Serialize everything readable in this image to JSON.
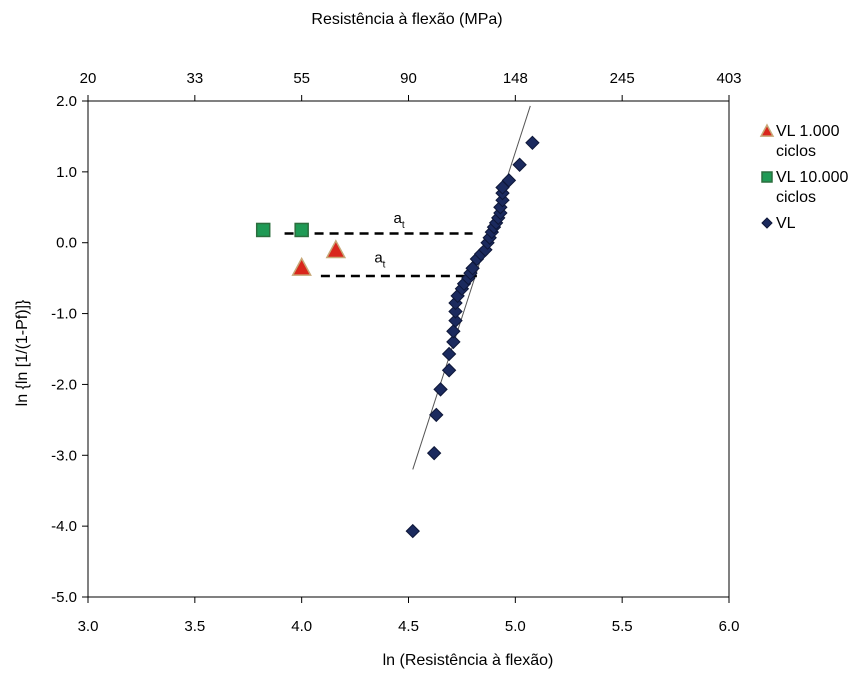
{
  "chart_data": {
    "type": "scatter",
    "xlabel": "ln (Resistência à flexão)",
    "ylabel": "ln {ln [1/(1-Pf)]}",
    "top_axis_label": "Resistência à flexão (MPa)",
    "xlim": [
      3.0,
      6.0
    ],
    "ylim": [
      -5.0,
      2.0
    ],
    "x_ticks": [
      "3.0",
      "3.5",
      "4.0",
      "4.5",
      "5.0",
      "5.5",
      "6.0"
    ],
    "y_ticks": [
      "2.0",
      "1.0",
      "0.0",
      "-1.0",
      "-2.0",
      "-3.0",
      "-4.0",
      "-5.0"
    ],
    "x_tick_values": [
      3.0,
      3.5,
      4.0,
      4.5,
      5.0,
      5.5,
      6.0
    ],
    "y_tick_values": [
      2.0,
      1.0,
      0.0,
      -1.0,
      -2.0,
      -3.0,
      -4.0,
      -5.0
    ],
    "top_ticks": [
      "20",
      "33",
      "55",
      "90",
      "148",
      "245",
      "403"
    ],
    "top_tick_values": [
      3.0,
      3.5,
      4.0,
      4.5,
      5.0,
      5.5,
      6.0
    ],
    "grid": false,
    "legend_position": "right",
    "series": [
      {
        "name": "VL 1.000 ciclos",
        "legend_lines": [
          "VL 1.000",
          "ciclos"
        ],
        "marker": "triangle",
        "color": "#d9261c",
        "edge_color": "#c8a878",
        "points": [
          [
            4.0,
            -0.35
          ],
          [
            4.16,
            -0.1
          ]
        ]
      },
      {
        "name": "VL 10.000 ciclos",
        "legend_lines": [
          "VL 10.000",
          "ciclos"
        ],
        "marker": "square",
        "color": "#1f9a55",
        "edge_color": "#2c6e3e",
        "points": [
          [
            3.82,
            0.18
          ],
          [
            4.0,
            0.18
          ]
        ]
      },
      {
        "name": "VL",
        "legend_lines": [
          "VL"
        ],
        "marker": "diamond",
        "color": "#1b2a5e",
        "edge_color": "#0e1738",
        "points": [
          [
            4.52,
            -4.07
          ],
          [
            4.62,
            -2.97
          ],
          [
            4.63,
            -2.43
          ],
          [
            4.65,
            -2.07
          ],
          [
            4.69,
            -1.8
          ],
          [
            4.69,
            -1.57
          ],
          [
            4.71,
            -1.4
          ],
          [
            4.71,
            -1.25
          ],
          [
            4.72,
            -1.1
          ],
          [
            4.72,
            -0.97
          ],
          [
            4.72,
            -0.85
          ],
          [
            4.73,
            -0.75
          ],
          [
            4.75,
            -0.65
          ],
          [
            4.76,
            -0.58
          ],
          [
            4.78,
            -0.5
          ],
          [
            4.79,
            -0.43
          ],
          [
            4.8,
            -0.36
          ],
          [
            4.82,
            -0.23
          ],
          [
            4.84,
            -0.16
          ],
          [
            4.86,
            -0.1
          ],
          [
            4.87,
            0.0
          ],
          [
            4.88,
            0.07
          ],
          [
            4.89,
            0.15
          ],
          [
            4.9,
            0.22
          ],
          [
            4.91,
            0.28
          ],
          [
            4.92,
            0.35
          ],
          [
            4.93,
            0.42
          ],
          [
            4.93,
            0.5
          ],
          [
            4.94,
            0.6
          ],
          [
            4.94,
            0.7
          ],
          [
            4.94,
            0.78
          ],
          [
            4.97,
            0.88
          ],
          [
            5.02,
            1.1
          ],
          [
            5.08,
            1.41
          ]
        ]
      }
    ],
    "trendline": {
      "points": [
        [
          4.52,
          -3.2
        ],
        [
          5.07,
          1.93
        ]
      ],
      "color": "#555555"
    },
    "annotations": [
      {
        "text": "a",
        "subscript": "t",
        "anchor": [
          4.43,
          0.28
        ]
      },
      {
        "text": "a",
        "subscript": "t",
        "anchor": [
          4.34,
          -0.28
        ]
      }
    ],
    "dashed_lines": [
      {
        "from": [
          3.92,
          0.13
        ],
        "to": [
          4.8,
          0.13
        ]
      },
      {
        "from": [
          4.09,
          -0.47
        ],
        "to": [
          4.82,
          -0.47
        ]
      }
    ]
  }
}
